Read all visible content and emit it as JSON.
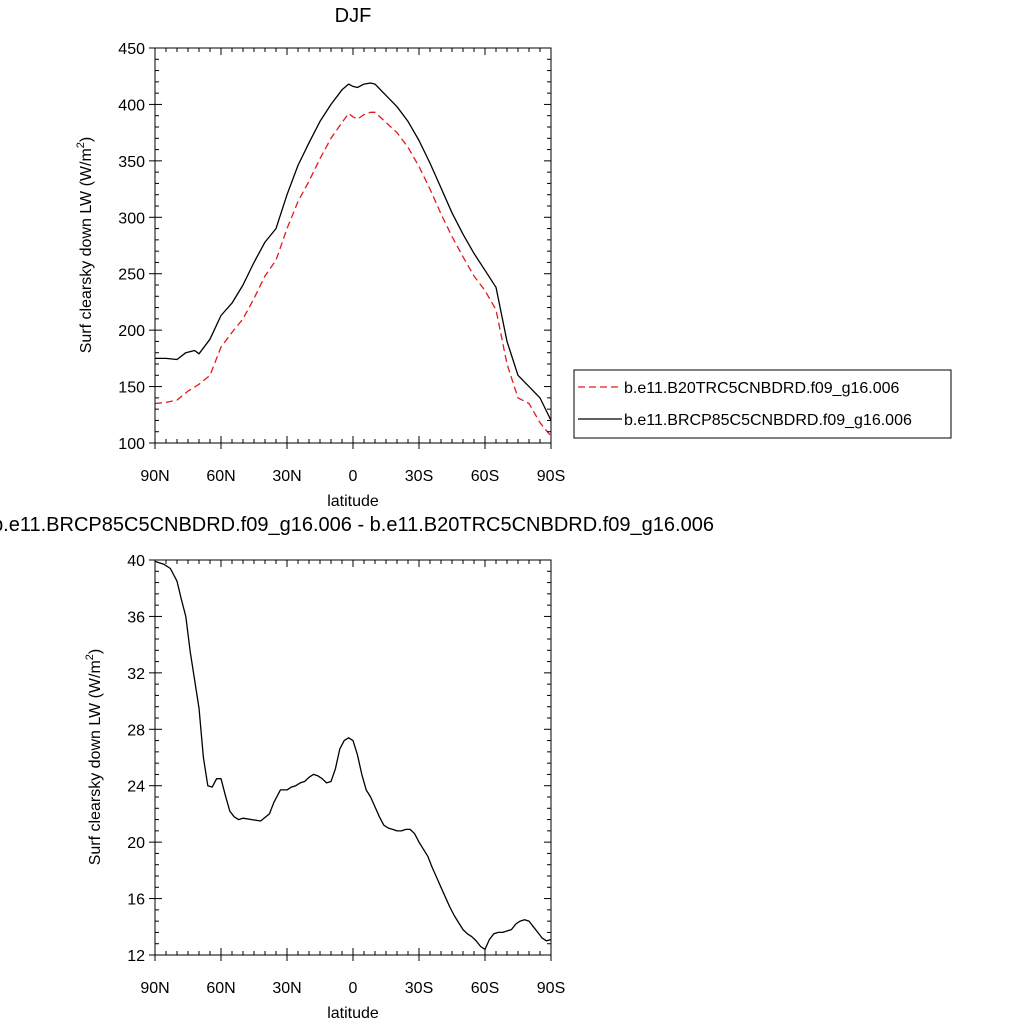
{
  "chart_data": [
    {
      "type": "line",
      "title": "DJF",
      "xlabel": "latitude",
      "ylabel": "Surf clearsky down LW (W/m²)",
      "ylabel_main": "Surf clearsky down LW (W/m",
      "ylabel_sup": "2",
      "ylabel_close": ")",
      "xlim": [
        -90,
        90
      ],
      "ylim": [
        100,
        450
      ],
      "x_ticks": [
        -90,
        -60,
        -30,
        0,
        30,
        60,
        90
      ],
      "x_tick_labels": [
        "90N",
        "60N",
        "30N",
        "0",
        "30S",
        "60S",
        "90S"
      ],
      "y_ticks": [
        100,
        150,
        200,
        250,
        300,
        350,
        400,
        450
      ],
      "y_tick_labels": [
        "100",
        "150",
        "200",
        "250",
        "300",
        "350",
        "400",
        "450"
      ],
      "legend_position": "right",
      "series": [
        {
          "name": "b.e11.B20TRC5CNBDRD.f09_g16.006",
          "color": "#e41a1c",
          "dash": "dashed",
          "x": [
            -90,
            -85,
            -80,
            -75,
            -70,
            -65,
            -60,
            -55,
            -50,
            -45,
            -40,
            -35,
            -30,
            -25,
            -20,
            -15,
            -10,
            -5,
            -2,
            0,
            2,
            5,
            8,
            10,
            15,
            20,
            25,
            30,
            35,
            40,
            45,
            50,
            55,
            60,
            65,
            70,
            75,
            80,
            85,
            90
          ],
          "y": [
            135,
            136,
            138,
            146,
            152,
            160,
            185,
            198,
            210,
            228,
            248,
            262,
            290,
            314,
            332,
            352,
            370,
            384,
            392,
            389,
            387,
            391,
            393,
            393,
            384,
            375,
            362,
            345,
            325,
            303,
            283,
            265,
            248,
            235,
            218,
            170,
            140,
            135,
            118,
            106
          ]
        },
        {
          "name": "b.e11.BRCP85C5CNBDRD.f09_g16.006",
          "color": "#000000",
          "dash": "solid",
          "x": [
            -90,
            -85,
            -80,
            -76,
            -72,
            -70,
            -65,
            -60,
            -55,
            -50,
            -45,
            -40,
            -35,
            -30,
            -25,
            -20,
            -15,
            -10,
            -5,
            -2,
            0,
            2,
            5,
            8,
            10,
            15,
            20,
            25,
            30,
            35,
            40,
            45,
            50,
            55,
            60,
            65,
            70,
            75,
            80,
            85,
            90
          ],
          "y": [
            175,
            175,
            174,
            180,
            182,
            179,
            192,
            213,
            224,
            240,
            260,
            278,
            290,
            320,
            346,
            366,
            385,
            400,
            413,
            418,
            416,
            415,
            418,
            419,
            418,
            408,
            398,
            385,
            368,
            348,
            326,
            304,
            285,
            268,
            253,
            238,
            190,
            160,
            150,
            140,
            120
          ]
        }
      ]
    },
    {
      "type": "line",
      "title": "b.e11.BRCP85C5CNBDRD.f09_g16.006 - b.e11.B20TRC5CNBDRD.f09_g16.006",
      "xlabel": "latitude",
      "ylabel": "Surf clearsky down LW (W/m²)",
      "ylabel_main": "Surf clearsky down LW (W/m",
      "ylabel_sup": "2",
      "ylabel_close": ")",
      "xlim": [
        -90,
        90
      ],
      "ylim": [
        12,
        40
      ],
      "x_ticks": [
        -90,
        -60,
        -30,
        0,
        30,
        60,
        90
      ],
      "x_tick_labels": [
        "90N",
        "60N",
        "30N",
        "0",
        "30S",
        "60S",
        "90S"
      ],
      "y_ticks": [
        12,
        16,
        20,
        24,
        28,
        32,
        36,
        40
      ],
      "y_tick_labels": [
        "12",
        "16",
        "20",
        "24",
        "28",
        "32",
        "36",
        "40"
      ],
      "series": [
        {
          "color": "#000000",
          "dash": "solid",
          "x": [
            -90,
            -86,
            -83,
            -80,
            -78,
            -76,
            -74,
            -72,
            -70,
            -68,
            -66,
            -64,
            -62,
            -60,
            -58,
            -56,
            -54,
            -52,
            -50,
            -46,
            -42,
            -38,
            -36,
            -33,
            -30,
            -28,
            -26,
            -24,
            -22,
            -20,
            -18,
            -16,
            -14,
            -12,
            -10,
            -8,
            -6,
            -4,
            -2,
            0,
            2,
            4,
            6,
            8,
            10,
            12,
            14,
            16,
            18,
            20,
            22,
            24,
            26,
            28,
            30,
            32,
            34,
            36,
            38,
            40,
            42,
            44,
            46,
            48,
            50,
            52,
            54,
            56,
            58,
            60,
            62,
            64,
            66,
            68,
            70,
            72,
            74,
            76,
            78,
            80,
            82,
            84,
            86,
            88,
            90
          ],
          "y": [
            39.9,
            39.7,
            39.4,
            38.5,
            37.2,
            36.0,
            33.5,
            31.5,
            29.5,
            26.0,
            24.0,
            23.9,
            24.5,
            24.5,
            23.3,
            22.2,
            21.8,
            21.6,
            21.7,
            21.6,
            21.5,
            22.0,
            22.8,
            23.7,
            23.7,
            23.9,
            24.0,
            24.2,
            24.3,
            24.6,
            24.8,
            24.7,
            24.5,
            24.2,
            24.3,
            25.2,
            26.6,
            27.2,
            27.4,
            27.2,
            26.2,
            24.8,
            23.7,
            23.2,
            22.5,
            21.8,
            21.2,
            21.0,
            20.9,
            20.8,
            20.8,
            20.9,
            20.9,
            20.6,
            20.0,
            19.5,
            19.0,
            18.2,
            17.5,
            16.8,
            16.1,
            15.4,
            14.8,
            14.3,
            13.8,
            13.5,
            13.3,
            13.0,
            12.6,
            12.4,
            13.1,
            13.5,
            13.6,
            13.6,
            13.7,
            13.8,
            14.2,
            14.4,
            14.5,
            14.4,
            14.0,
            13.6,
            13.2,
            13.0,
            13.1
          ]
        }
      ]
    }
  ]
}
